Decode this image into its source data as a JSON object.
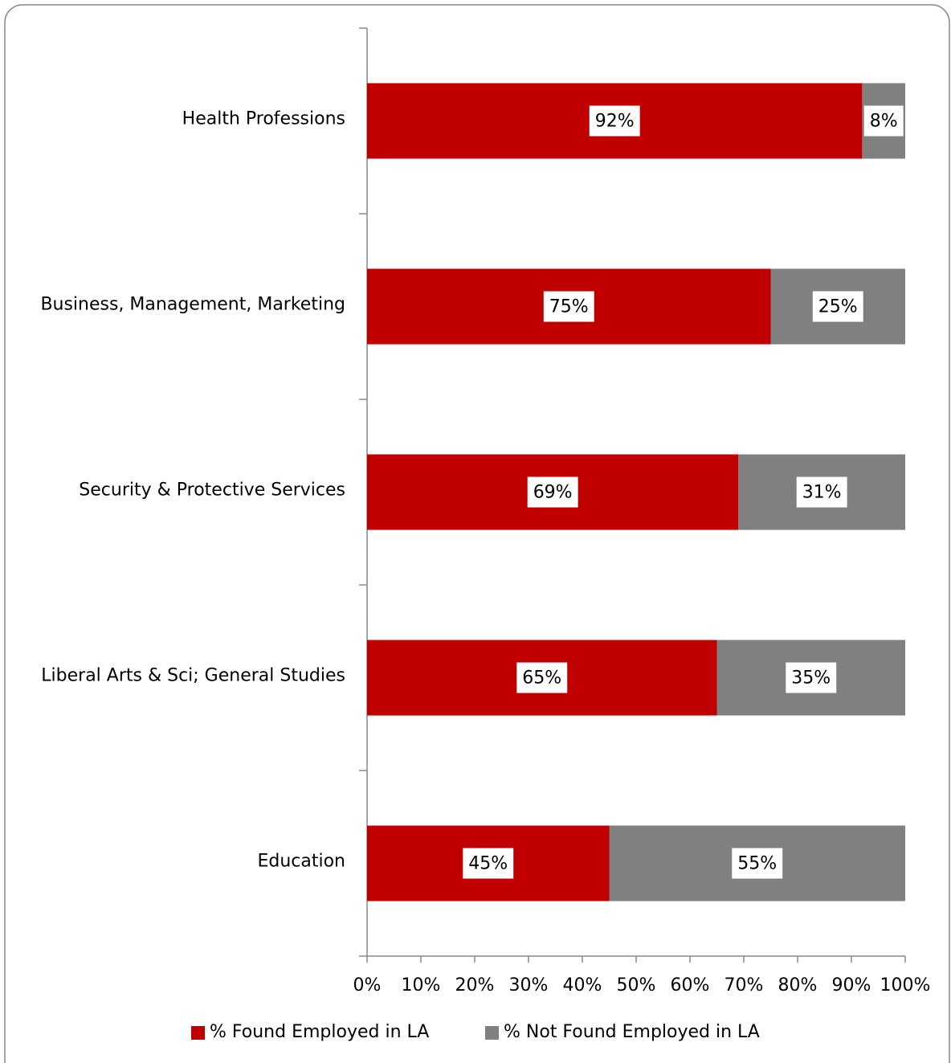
{
  "chart_data": {
    "type": "stacked_barh",
    "categories": [
      "Health Professions",
      "Business, Management, Marketing",
      "Security & Protective Services",
      "Liberal Arts & Sci; General Studies",
      "Education"
    ],
    "series": [
      {
        "name": "% Found Employed in LA",
        "color": "#c00000",
        "values": [
          92,
          75,
          69,
          65,
          45
        ],
        "value_labels": [
          "92%",
          "75%",
          "69%",
          "65%",
          "45%"
        ]
      },
      {
        "name": "% Not Found Employed in LA",
        "color": "#808080",
        "values": [
          8,
          25,
          31,
          35,
          55
        ],
        "value_labels": [
          "8%",
          "25%",
          "31%",
          "35%",
          "55%"
        ]
      }
    ],
    "xlim": [
      0,
      100
    ],
    "xticks": [
      {
        "value": 0,
        "label": "0%"
      },
      {
        "value": 10,
        "label": "10%"
      },
      {
        "value": 20,
        "label": "20%"
      },
      {
        "value": 30,
        "label": "30%"
      },
      {
        "value": 40,
        "label": "40%"
      },
      {
        "value": 50,
        "label": "50%"
      },
      {
        "value": 60,
        "label": "60%"
      },
      {
        "value": 70,
        "label": "70%"
      },
      {
        "value": 80,
        "label": "80%"
      },
      {
        "value": 90,
        "label": "90%"
      },
      {
        "value": 100,
        "label": "100%"
      }
    ],
    "legend": "bottom"
  }
}
